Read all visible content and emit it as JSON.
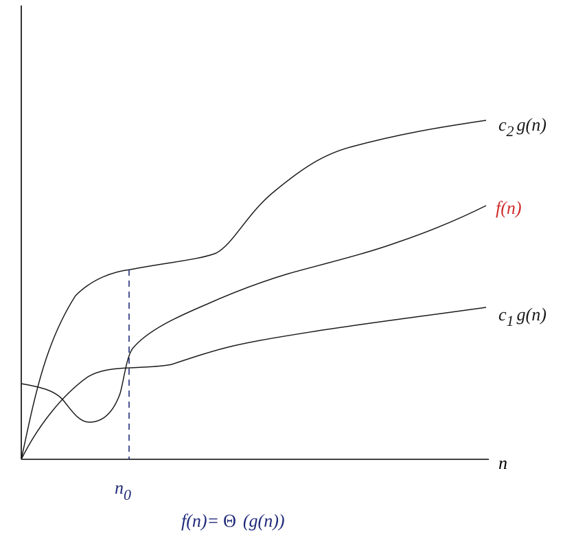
{
  "colors": {
    "axis": "#000000",
    "curves": "#1a1a1a",
    "f_label": "#d02b2b",
    "threshold": "#1f2a7a",
    "caption": "#1f2a7a"
  },
  "labels": {
    "x_axis": "n",
    "c2_prefix": "c",
    "c2_sub": "2",
    "c2_func": "g(n)",
    "f": "f(n)",
    "c1_prefix": "c",
    "c1_sub": "1",
    "c1_func": "g(n)",
    "n0_main": "n",
    "n0_sub": "0"
  },
  "caption": {
    "lhs": "f(n)=",
    "theta": "Θ",
    "rhs": "(g(n))"
  }
}
